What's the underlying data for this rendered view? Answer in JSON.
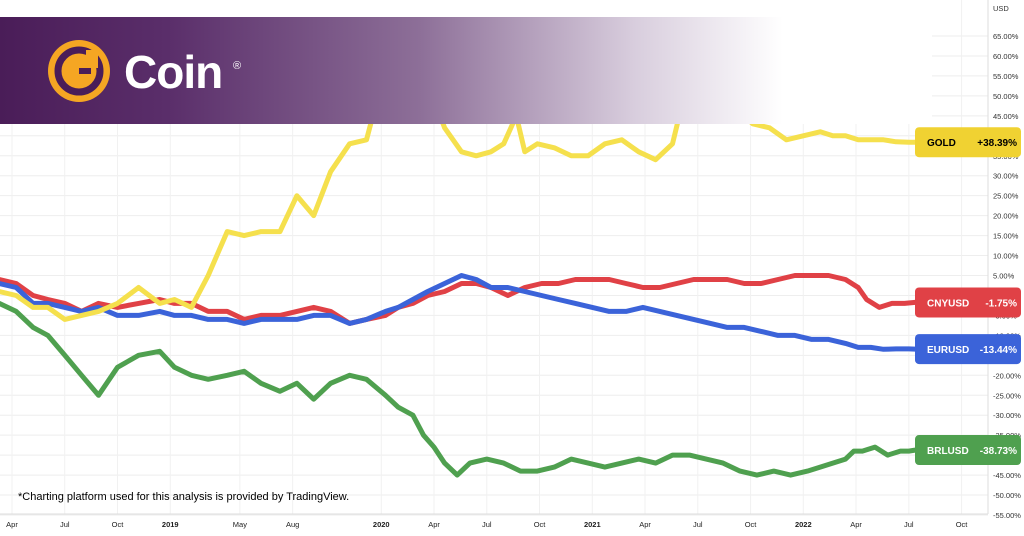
{
  "brand": {
    "name": "Coin",
    "reg": "®"
  },
  "footnote": "*Charting platform used for this analysis is provided by TradingView.",
  "chart_data": {
    "type": "line",
    "y_unit": "USD",
    "ylim": [
      -55,
      65
    ],
    "yticks": [
      "65.00%",
      "60.00%",
      "55.00%",
      "50.00%",
      "45.00%",
      "40.00%",
      "35.00%",
      "30.00%",
      "25.00%",
      "20.00%",
      "15.00%",
      "10.00%",
      "5.00%",
      "0.00%",
      "-5.00%",
      "-10.00%",
      "-15.00%",
      "-20.00%",
      "-25.00%",
      "-30.00%",
      "-35.00%",
      "-40.00%",
      "-45.00%",
      "-50.00%",
      "-55.00%"
    ],
    "ytick_values": [
      65,
      60,
      55,
      50,
      45,
      40,
      35,
      30,
      25,
      20,
      15,
      10,
      5,
      0,
      -5,
      -10,
      -15,
      -20,
      -25,
      -30,
      -35,
      -40,
      -45,
      -50,
      -55
    ],
    "xlim": [
      2018.25,
      2022.79
    ],
    "xticks": [
      {
        "label": "Apr",
        "x": 2018.25,
        "bold": false
      },
      {
        "label": "Jul",
        "x": 2018.5,
        "bold": false
      },
      {
        "label": "Oct",
        "x": 2018.75,
        "bold": false
      },
      {
        "label": "2019",
        "x": 2019.0,
        "bold": true
      },
      {
        "label": "May",
        "x": 2019.33,
        "bold": false
      },
      {
        "label": "Aug",
        "x": 2019.58,
        "bold": false
      },
      {
        "label": "2020",
        "x": 2020.0,
        "bold": true
      },
      {
        "label": "Apr",
        "x": 2020.25,
        "bold": false
      },
      {
        "label": "Jul",
        "x": 2020.5,
        "bold": false
      },
      {
        "label": "Oct",
        "x": 2020.75,
        "bold": false
      },
      {
        "label": "2021",
        "x": 2021.0,
        "bold": true
      },
      {
        "label": "Apr",
        "x": 2021.25,
        "bold": false
      },
      {
        "label": "Jul",
        "x": 2021.5,
        "bold": false
      },
      {
        "label": "Oct",
        "x": 2021.75,
        "bold": false
      },
      {
        "label": "2022",
        "x": 2022.0,
        "bold": true
      },
      {
        "label": "Apr",
        "x": 2022.25,
        "bold": false
      },
      {
        "label": "Jul",
        "x": 2022.5,
        "bold": false
      },
      {
        "label": "Oct",
        "x": 2022.75,
        "bold": false
      }
    ],
    "series": [
      {
        "name": "GOLD",
        "label": "GOLD",
        "value_label": "+38.39%",
        "color": "#f5e04d",
        "tag_color": "#f0d232",
        "text_color": "#000000",
        "x": [
          2018.19,
          2018.27,
          2018.35,
          2018.42,
          2018.5,
          2018.58,
          2018.66,
          2018.75,
          2018.85,
          2018.95,
          2019.02,
          2019.1,
          2019.18,
          2019.27,
          2019.35,
          2019.43,
          2019.52,
          2019.6,
          2019.68,
          2019.76,
          2019.85,
          2019.93,
          2020.02,
          2020.08,
          2020.15,
          2020.2,
          2020.25,
          2020.3,
          2020.38,
          2020.45,
          2020.52,
          2020.58,
          2020.64,
          2020.68,
          2020.74,
          2020.82,
          2020.9,
          2020.98,
          2021.06,
          2021.14,
          2021.22,
          2021.3,
          2021.38,
          2021.44,
          2021.52,
          2021.6,
          2021.68,
          2021.76,
          2021.84,
          2021.92,
          2022.0,
          2022.08,
          2022.14,
          2022.2,
          2022.26,
          2022.32,
          2022.38,
          2022.44,
          2022.5,
          2022.53
        ],
        "y": [
          1,
          0,
          -3,
          -3,
          -6,
          -5,
          -4,
          -2,
          2,
          -2,
          -1,
          -3,
          5,
          16,
          15,
          16,
          16,
          25,
          20,
          31,
          38,
          39,
          57,
          50,
          46,
          48,
          49,
          42,
          36,
          35,
          36,
          38,
          45,
          36,
          38,
          37,
          35,
          35,
          38,
          39,
          36,
          34,
          38,
          51,
          53,
          50,
          47,
          43,
          42,
          39,
          40,
          41,
          40,
          40,
          39,
          39,
          39,
          38.5,
          38.4,
          38.39
        ]
      },
      {
        "name": "CNYUSD",
        "label": "CNYUSD",
        "value_label": "-1.75%",
        "color": "#e04146",
        "tag_color": "#e04146",
        "text_color": "#ffffff",
        "x": [
          2018.19,
          2018.27,
          2018.35,
          2018.42,
          2018.5,
          2018.58,
          2018.66,
          2018.75,
          2018.85,
          2018.95,
          2019.02,
          2019.1,
          2019.18,
          2019.27,
          2019.35,
          2019.43,
          2019.52,
          2019.6,
          2019.68,
          2019.76,
          2019.85,
          2019.93,
          2020.02,
          2020.08,
          2020.15,
          2020.22,
          2020.3,
          2020.38,
          2020.45,
          2020.52,
          2020.6,
          2020.68,
          2020.76,
          2020.84,
          2020.92,
          2021.0,
          2021.08,
          2021.16,
          2021.24,
          2021.32,
          2021.4,
          2021.48,
          2021.56,
          2021.64,
          2021.72,
          2021.8,
          2021.88,
          2021.96,
          2022.04,
          2022.12,
          2022.2,
          2022.26,
          2022.3,
          2022.36,
          2022.42,
          2022.48,
          2022.53
        ],
        "y": [
          4,
          3,
          0,
          -1,
          -2,
          -4,
          -2,
          -3,
          -2,
          -1,
          -2,
          -2,
          -4,
          -4,
          -6,
          -5,
          -5,
          -4,
          -3,
          -4,
          -7,
          -6,
          -5,
          -3,
          -2,
          0,
          1,
          3,
          3,
          2,
          0,
          2,
          3,
          3,
          4,
          4,
          4,
          3,
          2,
          2,
          3,
          4,
          4,
          4,
          3,
          3,
          4,
          5,
          5,
          5,
          4,
          2,
          -1,
          -3,
          -2,
          -2,
          -1.75
        ]
      },
      {
        "name": "EURUSD",
        "label": "EURUSD",
        "value_label": "-13.44%",
        "color": "#3b63d9",
        "tag_color": "#3b63d9",
        "text_color": "#ffffff",
        "x": [
          2018.19,
          2018.27,
          2018.35,
          2018.42,
          2018.5,
          2018.58,
          2018.66,
          2018.75,
          2018.85,
          2018.95,
          2019.02,
          2019.1,
          2019.18,
          2019.27,
          2019.35,
          2019.43,
          2019.52,
          2019.6,
          2019.68,
          2019.76,
          2019.85,
          2019.93,
          2020.02,
          2020.08,
          2020.15,
          2020.22,
          2020.3,
          2020.38,
          2020.45,
          2020.52,
          2020.6,
          2020.68,
          2020.76,
          2020.84,
          2020.92,
          2021.0,
          2021.08,
          2021.16,
          2021.24,
          2021.32,
          2021.4,
          2021.48,
          2021.56,
          2021.64,
          2021.72,
          2021.8,
          2021.88,
          2021.96,
          2022.04,
          2022.12,
          2022.2,
          2022.26,
          2022.32,
          2022.38,
          2022.44,
          2022.5,
          2022.53
        ],
        "y": [
          3,
          2,
          -2,
          -2,
          -3,
          -4,
          -3,
          -5,
          -5,
          -4,
          -5,
          -5,
          -6,
          -6,
          -7,
          -6,
          -6,
          -6,
          -5,
          -5,
          -7,
          -6,
          -4,
          -3,
          -1,
          1,
          3,
          5,
          4,
          2,
          2,
          1,
          0,
          -1,
          -2,
          -3,
          -4,
          -4,
          -3,
          -4,
          -5,
          -6,
          -7,
          -8,
          -8,
          -9,
          -10,
          -10,
          -11,
          -11,
          -12,
          -13,
          -13,
          -13.5,
          -13.4,
          -13.4,
          -13.44
        ]
      },
      {
        "name": "BRLUSD",
        "label": "BRLUSD",
        "value_label": "-38.73%",
        "color": "#4fa04f",
        "tag_color": "#4fa04f",
        "text_color": "#ffffff",
        "x": [
          2018.19,
          2018.27,
          2018.35,
          2018.42,
          2018.5,
          2018.58,
          2018.66,
          2018.75,
          2018.85,
          2018.95,
          2019.02,
          2019.1,
          2019.18,
          2019.27,
          2019.35,
          2019.43,
          2019.52,
          2019.6,
          2019.68,
          2019.76,
          2019.85,
          2019.93,
          2020.02,
          2020.08,
          2020.15,
          2020.2,
          2020.25,
          2020.3,
          2020.36,
          2020.42,
          2020.5,
          2020.58,
          2020.66,
          2020.74,
          2020.82,
          2020.9,
          2020.98,
          2021.06,
          2021.14,
          2021.22,
          2021.3,
          2021.38,
          2021.46,
          2021.54,
          2021.62,
          2021.7,
          2021.78,
          2021.86,
          2021.94,
          2022.02,
          2022.08,
          2022.14,
          2022.2,
          2022.24,
          2022.28,
          2022.34,
          2022.4,
          2022.46,
          2022.5,
          2022.53
        ],
        "y": [
          -2,
          -4,
          -8,
          -10,
          -15,
          -20,
          -25,
          -18,
          -15,
          -14,
          -18,
          -20,
          -21,
          -20,
          -19,
          -22,
          -24,
          -22,
          -26,
          -22,
          -20,
          -21,
          -25,
          -28,
          -30,
          -35,
          -38,
          -42,
          -45,
          -42,
          -41,
          -42,
          -44,
          -44,
          -43,
          -41,
          -42,
          -43,
          -42,
          -41,
          -42,
          -40,
          -40,
          -41,
          -42,
          -44,
          -45,
          -44,
          -45,
          -44,
          -43,
          -42,
          -41,
          -39,
          -39,
          -38,
          -40,
          -39,
          -39,
          -38.73
        ]
      }
    ]
  }
}
